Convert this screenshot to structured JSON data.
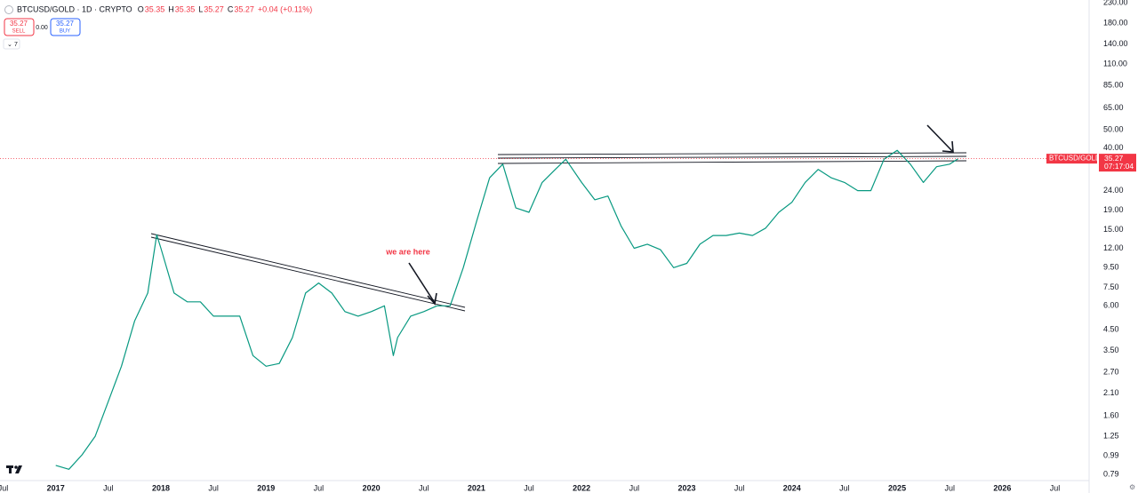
{
  "chart_data": {
    "type": "line",
    "header": {
      "symbol": "BTCUSD/GOLD · 1D · CRYPTO",
      "ohlc": [
        {
          "label": "O",
          "value": "35.35"
        },
        {
          "label": "H",
          "value": "35.35"
        },
        {
          "label": "L",
          "value": "35.27"
        },
        {
          "label": "C",
          "value": "35.27"
        }
      ],
      "change": "+0.04 (+0.11%)",
      "sell": {
        "price": "35.27",
        "label": "SELL"
      },
      "spread": "0.00",
      "buy": {
        "price": "35.27",
        "label": "BUY"
      },
      "indicators": "7"
    },
    "annotation": "we are here",
    "price_label": {
      "symbol": "BTCUSD/GOLD",
      "price": 35.27,
      "countdown": "07:17:04",
      "color": "#f23645"
    },
    "log_scale": true,
    "grid": false,
    "xlim": [
      2016.47,
      2026.8
    ],
    "ylim": [
      0.741,
      238
    ],
    "xticks": [
      {
        "value": 2016.5,
        "label": "Jul"
      },
      2017,
      {
        "value": 2017.5,
        "label": "Jul"
      },
      2018,
      {
        "value": 2018.5,
        "label": "Jul"
      },
      2019,
      {
        "value": 2019.5,
        "label": "Jul"
      },
      2020,
      {
        "value": 2020.5,
        "label": "Jul"
      },
      2021,
      {
        "value": 2021.5,
        "label": "Jul"
      },
      2022,
      {
        "value": 2022.5,
        "label": "Jul"
      },
      2023,
      {
        "value": 2023.5,
        "label": "Jul"
      },
      2024,
      {
        "value": 2024.5,
        "label": "Jul"
      },
      2025,
      {
        "value": 2025.5,
        "label": "Jul"
      },
      2026,
      {
        "value": 2026.5,
        "label": "Jul"
      }
    ],
    "yticks": [
      {
        "value": 230,
        "label": "230.00"
      },
      {
        "value": 180,
        "label": "180.00"
      },
      {
        "value": 140,
        "label": "140.00"
      },
      {
        "value": 110,
        "label": "110.00"
      },
      {
        "value": 85,
        "label": "85.00"
      },
      {
        "value": 65,
        "label": "65.00"
      },
      {
        "value": 50,
        "label": "50.00"
      },
      {
        "value": 40,
        "label": "40.00"
      },
      {
        "value": 24,
        "label": "24.00"
      },
      {
        "value": 19,
        "label": "19.00"
      },
      {
        "value": 15,
        "label": "15.00"
      },
      {
        "value": 12,
        "label": "12.00"
      },
      {
        "value": 9.5,
        "label": "9.50"
      },
      {
        "value": 7.5,
        "label": "7.50"
      },
      {
        "value": 6,
        "label": "6.00"
      },
      {
        "value": 4.5,
        "label": "4.50"
      },
      {
        "value": 3.5,
        "label": "3.50"
      },
      {
        "value": 2.7,
        "label": "2.70"
      },
      {
        "value": 2.1,
        "label": "2.10"
      },
      {
        "value": 1.6,
        "label": "1.60"
      },
      1.25,
      0.99,
      0.79
    ],
    "series": [
      {
        "color": "#089981",
        "x": [
          2017.0,
          2017.125,
          2017.25,
          2017.375,
          2017.5,
          2017.625,
          2017.75,
          2017.875,
          2017.96,
          2018.0,
          2018.125,
          2018.25,
          2018.375,
          2018.5,
          2018.625,
          2018.75,
          2018.875,
          2019.0,
          2019.125,
          2019.25,
          2019.375,
          2019.5,
          2019.625,
          2019.75,
          2019.875,
          2020.0,
          2020.125,
          2020.21,
          2020.25,
          2020.375,
          2020.5,
          2020.625,
          2020.75,
          2020.875,
          2021.0,
          2021.125,
          2021.25,
          2021.375,
          2021.5,
          2021.625,
          2021.75,
          2021.85,
          2022.0,
          2022.125,
          2022.25,
          2022.375,
          2022.5,
          2022.625,
          2022.75,
          2022.875,
          2023.0,
          2023.125,
          2023.25,
          2023.375,
          2023.5,
          2023.625,
          2023.75,
          2023.875,
          2024.0,
          2024.125,
          2024.25,
          2024.375,
          2024.5,
          2024.625,
          2024.75,
          2024.875,
          2025.0,
          2025.125,
          2025.25,
          2025.375,
          2025.5,
          2025.58
        ],
        "values": [
          0.88,
          0.84,
          1.0,
          1.25,
          1.9,
          2.9,
          5.0,
          7.0,
          14.1,
          12,
          7.0,
          6.3,
          6.3,
          5.3,
          5.3,
          5.3,
          3.3,
          2.9,
          3.0,
          4.1,
          7.0,
          7.9,
          7.0,
          5.6,
          5.3,
          5.6,
          6.0,
          3.3,
          4.1,
          5.3,
          5.6,
          6.0,
          6.0,
          9.5,
          16.5,
          28,
          33,
          19.5,
          18.5,
          26.5,
          31,
          35,
          26.5,
          21.5,
          22.5,
          15.7,
          12,
          12.6,
          11.8,
          9.5,
          10,
          12.6,
          14,
          14,
          14.4,
          14,
          15.3,
          18.5,
          20.9,
          26.5,
          31,
          28,
          26.5,
          24,
          24,
          35,
          39,
          33,
          26.5,
          32,
          33,
          35.27
        ]
      }
    ]
  }
}
